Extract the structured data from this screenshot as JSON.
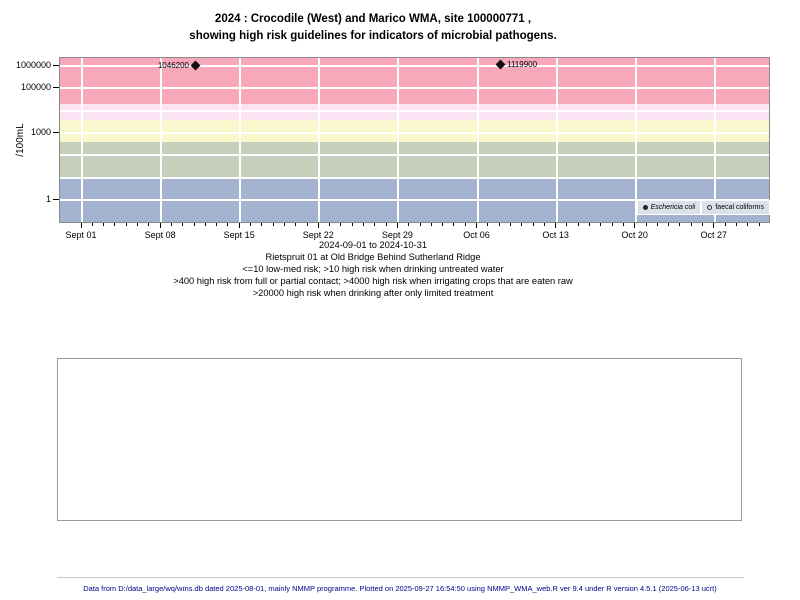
{
  "title": {
    "line1": "2024 : Crocodile (West) and Marico WMA, site 100000771 ,",
    "line2": "showing high risk guidelines for indicators of microbial pathogens."
  },
  "chart_data": {
    "type": "scatter",
    "title": "2024 : Crocodile (West) and Marico WMA, site 100000771 , showing high risk guidelines for indicators of microbial pathogens.",
    "ylabel": "/100mL",
    "xlabel": "2024-09-01 to 2024-10-31",
    "y_axis": {
      "scale": "log",
      "ticks": [
        {
          "value": 1,
          "label": "1"
        },
        {
          "value": 1000,
          "label": "1000"
        },
        {
          "value": 100000,
          "label": "100000"
        },
        {
          "value": 1000000,
          "label": "1000000"
        }
      ],
      "gridline_values": [
        1,
        10,
        100,
        1000,
        10000,
        100000,
        1000000
      ]
    },
    "x_axis": {
      "start_date": "2024-09-01",
      "end_date": "2024-10-31",
      "minor_tick_interval_days": 1,
      "major_ticks": [
        {
          "date": "2024-09-01",
          "label": "Sept 01"
        },
        {
          "date": "2024-09-08",
          "label": "Sept 08"
        },
        {
          "date": "2024-09-15",
          "label": "Sept 15"
        },
        {
          "date": "2024-09-22",
          "label": "Sept 22"
        },
        {
          "date": "2024-09-29",
          "label": "Sept 29"
        },
        {
          "date": "2024-10-06",
          "label": "Oct 06"
        },
        {
          "date": "2024-10-13",
          "label": "Oct 13"
        },
        {
          "date": "2024-10-20",
          "label": "Oct 20"
        },
        {
          "date": "2024-10-27",
          "label": "Oct 27"
        }
      ]
    },
    "risk_bands": [
      {
        "name": "band-high-risk-drinking-limited-treatment",
        "color": "#F7A9BA",
        "from": 20000,
        "to": null
      },
      {
        "name": "band-high-risk-irrigating-raw-crops",
        "color": "#FAE3F3",
        "from": 4000,
        "to": 20000
      },
      {
        "name": "band-high-risk-full-partial-contact",
        "color": "#FAF7CD",
        "from": 400,
        "to": 4000
      },
      {
        "name": "band-high-risk-drinking-untreated",
        "color": "#C6CFBC",
        "from": 10,
        "to": 400
      },
      {
        "name": "band-low-med-risk",
        "color": "#A4B4D0",
        "from": null,
        "to": 10
      }
    ],
    "series": [
      {
        "name": "Eschericia coli",
        "marker": "filled-diamond",
        "points": [
          {
            "date": "2024-09-11",
            "value": 1046200,
            "label": "1046200",
            "label_side": "left"
          },
          {
            "date": "2024-10-08",
            "value": 1119900,
            "label": "1119900",
            "label_side": "right"
          }
        ]
      },
      {
        "name": "faecal coliforms",
        "marker": "open-circle",
        "points": []
      }
    ],
    "legend": {
      "position": "bottom-right",
      "bg_color": "#DBE1EB",
      "entries": [
        {
          "label": "Eschericia coli",
          "marker": "filled-dot",
          "italic": true
        },
        {
          "label": "faecal coliforms",
          "marker": "open-circle",
          "italic": false
        }
      ]
    },
    "annotations": [
      "Rietspruit 01 at Old Bridge Behind Sutherland Ridge",
      "<=10 low-med risk; >10 high risk when drinking untreated water",
      ">400 high risk from full or partial contact; >4000 high risk when irrigating crops that are eaten raw",
      ">20000 high risk when drinking after only limited treatment"
    ]
  },
  "footer": {
    "text": "Data from D:/data_large/wq/wms.db dated 2025-08-01, mainly NMMP programme. Plotted on 2025-09-27 16:54:50 using NMMP_WMA_web.R ver 9.4 under R version 4.5.1 (2025-06-13 ucrt)",
    "color": "#00008B"
  }
}
